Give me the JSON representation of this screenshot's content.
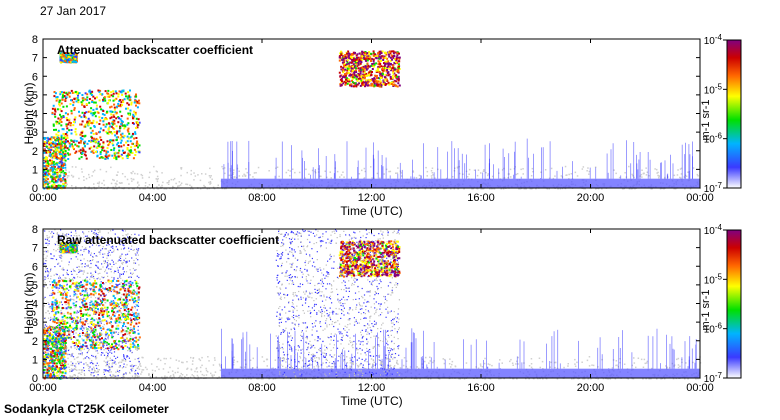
{
  "date": "27 Jan 2017",
  "footer": "Sodankyla CT25K ceilometer",
  "chart_data": [
    {
      "type": "heatmap",
      "title": "Attenuated backscatter coefficient",
      "xlabel": "Time (UTC)",
      "ylabel": "Height (km)",
      "x_ticks": [
        "00:00",
        "04:00",
        "08:00",
        "12:00",
        "16:00",
        "20:00",
        "00:00"
      ],
      "xlim": [
        0,
        24
      ],
      "y_ticks": [
        "0",
        "1",
        "2",
        "3",
        "4",
        "5",
        "6",
        "7",
        "8"
      ],
      "ylim": [
        0,
        8
      ],
      "colorbar": {
        "label": "m-1 sr-1",
        "scale": "log",
        "range": [
          1e-07,
          0.0001
        ],
        "ticks": [
          {
            "base": "10",
            "exp": "-4",
            "value": 0.0001
          },
          {
            "base": "10",
            "exp": "-5",
            "value": 1e-05
          },
          {
            "base": "10",
            "exp": "-6",
            "value": 1e-06
          },
          {
            "base": "10",
            "exp": "-7",
            "value": 1e-07
          }
        ],
        "colors": [
          "#ffffff",
          "#3a3aff",
          "#00b4ff",
          "#00e000",
          "#ffff00",
          "#ff6600",
          "#cc0000",
          "#800080"
        ]
      },
      "features": [
        {
          "kind": "cloud",
          "t": [
            0.3,
            3.5
          ],
          "h": [
            1.6,
            5.3
          ],
          "level": 0.55
        },
        {
          "kind": "cloud",
          "t": [
            0.6,
            1.2
          ],
          "h": [
            6.8,
            7.3
          ],
          "level": 0.45
        },
        {
          "kind": "cloud",
          "t": [
            10.8,
            13.0
          ],
          "h": [
            5.5,
            7.4
          ],
          "level": 0.8
        },
        {
          "kind": "boundary_layer",
          "t": [
            0,
            0.8
          ],
          "h": [
            0,
            2.8
          ],
          "level": 0.5
        },
        {
          "kind": "aerosol",
          "t": [
            6.5,
            24
          ],
          "h": [
            0,
            0.5
          ],
          "level": 0.2
        }
      ]
    },
    {
      "type": "heatmap",
      "title": "Raw attenuated backscatter coefficient",
      "xlabel": "Time (UTC)",
      "ylabel": "Height (km)",
      "x_ticks": [
        "00:00",
        "04:00",
        "08:00",
        "12:00",
        "16:00",
        "20:00",
        "00:00"
      ],
      "xlim": [
        0,
        24
      ],
      "y_ticks": [
        "0",
        "1",
        "2",
        "3",
        "4",
        "5",
        "6",
        "7",
        "8"
      ],
      "ylim": [
        0,
        8
      ],
      "colorbar": {
        "label": "m-1 sr-1",
        "scale": "log",
        "range": [
          1e-07,
          0.0001
        ],
        "ticks": [
          {
            "base": "10",
            "exp": "-4",
            "value": 0.0001
          },
          {
            "base": "10",
            "exp": "-5",
            "value": 1e-05
          },
          {
            "base": "10",
            "exp": "-6",
            "value": 1e-06
          },
          {
            "base": "10",
            "exp": "-7",
            "value": 1e-07
          }
        ],
        "colors": [
          "#ffffff",
          "#3a3aff",
          "#00b4ff",
          "#00e000",
          "#ffff00",
          "#ff6600",
          "#cc0000",
          "#800080"
        ]
      },
      "features": [
        {
          "kind": "cloud",
          "t": [
            0.3,
            3.5
          ],
          "h": [
            1.6,
            5.3
          ],
          "level": 0.55
        },
        {
          "kind": "cloud",
          "t": [
            0.6,
            1.2
          ],
          "h": [
            6.8,
            7.3
          ],
          "level": 0.45
        },
        {
          "kind": "cloud",
          "t": [
            10.8,
            13.0
          ],
          "h": [
            5.5,
            7.4
          ],
          "level": 0.8
        },
        {
          "kind": "boundary_layer",
          "t": [
            0,
            0.8
          ],
          "h": [
            0,
            2.8
          ],
          "level": 0.5
        },
        {
          "kind": "aerosol",
          "t": [
            6.5,
            24
          ],
          "h": [
            0,
            0.5
          ],
          "level": 0.2
        },
        {
          "kind": "noise",
          "t": [
            0,
            3.5
          ],
          "h": [
            0,
            8
          ],
          "level": 0.1
        },
        {
          "kind": "noise",
          "t": [
            8.5,
            13.0
          ],
          "h": [
            0,
            8
          ],
          "level": 0.15
        }
      ]
    }
  ]
}
